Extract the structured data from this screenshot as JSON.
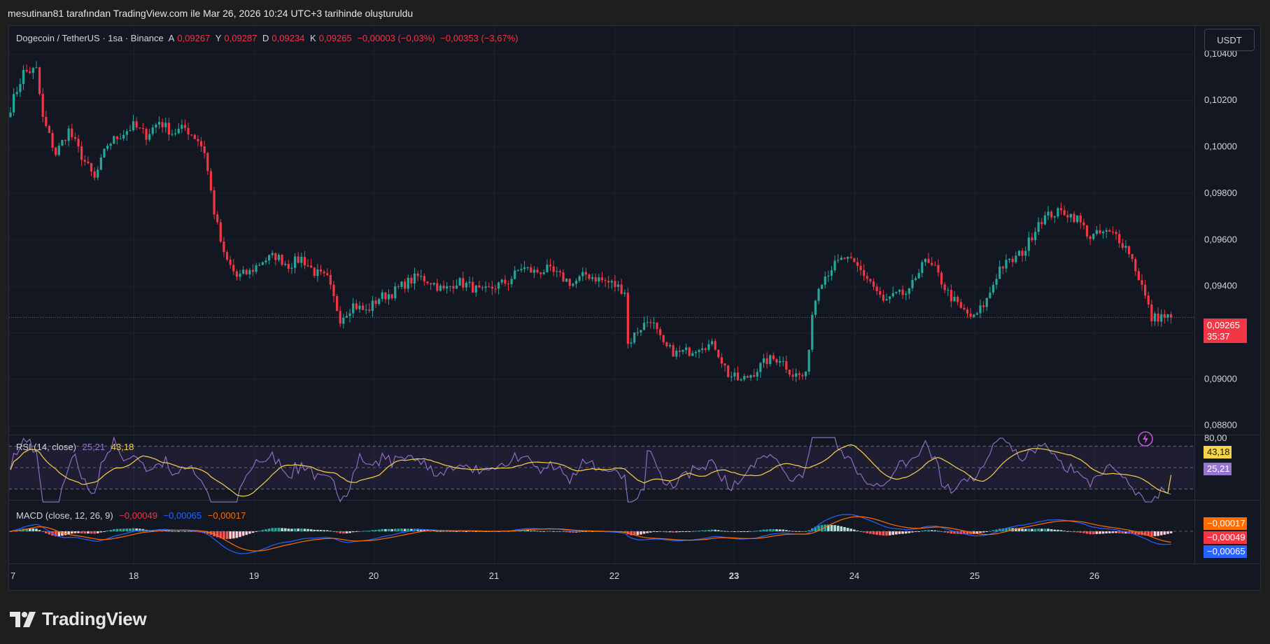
{
  "caption": "mesutinan81 tarafından TradingView.com ile Mar 26, 2026 10:24 UTC+3 tarihinde oluşturuldu",
  "legend": {
    "symbol": "Dogecoin / TetherUS · 1sa · Binance",
    "open_label": "A",
    "open": "0,09267",
    "high_label": "Y",
    "high": "0,09287",
    "low_label": "D",
    "low": "0,09234",
    "close_label": "K",
    "close": "0,09265",
    "change": "−0,00003 (−0,03%)",
    "change2": "−0,00353 (−3,67%)"
  },
  "currency_button": "USDT",
  "price_axis": [
    "0,10400",
    "0,10200",
    "0,10000",
    "0,09800",
    "0,09600",
    "0,09400",
    "0,09000",
    "0,08800"
  ],
  "current_price": {
    "value": "0,09265",
    "countdown": "35:37"
  },
  "rsi": {
    "label": "RSI (14, close)",
    "value1": "25,21",
    "value2": "43,18",
    "axis_top": "80,00"
  },
  "macd": {
    "label": "MACD (close, 12, 26, 9)",
    "v1": "−0,00049",
    "v2": "−0,00065",
    "v3": "−0,00017",
    "tags": [
      "−0,00017",
      "−0,00049",
      "−0,00065"
    ]
  },
  "time_axis": [
    "7",
    "18",
    "19",
    "20",
    "21",
    "22",
    "23",
    "24",
    "25",
    "26"
  ],
  "brand": "TradingView",
  "colors": {
    "up": "#26a69a",
    "down": "#f23645",
    "rsi": "#9575cd",
    "rsi_ma": "#f7d34a",
    "macd": "#2962ff",
    "signal": "#ff6d00"
  },
  "chart_data": {
    "type": "candlestick",
    "title": "Dogecoin / TetherUS · 1sa · Binance",
    "x_ticks": [
      "7",
      "18",
      "19",
      "20",
      "21",
      "22",
      "23",
      "24",
      "25",
      "26"
    ],
    "ylim": [
      0.0876,
      0.1052
    ],
    "close_path": [
      [
        0,
        0.1017
      ],
      [
        4,
        0.1032
      ],
      [
        8,
        0.1033
      ],
      [
        10,
        0.1012
      ],
      [
        14,
        0.0997
      ],
      [
        18,
        0.1007
      ],
      [
        22,
        0.0996
      ],
      [
        26,
        0.0986
      ],
      [
        30,
        0.1001
      ],
      [
        34,
        0.1005
      ],
      [
        38,
        0.1009
      ],
      [
        42,
        0.1005
      ],
      [
        46,
        0.1011
      ],
      [
        50,
        0.1006
      ],
      [
        54,
        0.1008
      ],
      [
        58,
        0.1003
      ],
      [
        60,
        0.0998
      ],
      [
        63,
        0.0972
      ],
      [
        66,
        0.0953
      ],
      [
        70,
        0.0944
      ],
      [
        74,
        0.0946
      ],
      [
        78,
        0.0951
      ],
      [
        82,
        0.0953
      ],
      [
        86,
        0.0949
      ],
      [
        90,
        0.0952
      ],
      [
        94,
        0.0946
      ],
      [
        98,
        0.0943
      ],
      [
        102,
        0.0926
      ],
      [
        106,
        0.0932
      ],
      [
        110,
        0.0929
      ],
      [
        114,
        0.0935
      ],
      [
        118,
        0.0937
      ],
      [
        122,
        0.0941
      ],
      [
        126,
        0.0944
      ],
      [
        130,
        0.0942
      ],
      [
        134,
        0.0938
      ],
      [
        138,
        0.0942
      ],
      [
        142,
        0.094
      ],
      [
        146,
        0.0937
      ],
      [
        150,
        0.094
      ],
      [
        154,
        0.0942
      ],
      [
        158,
        0.0948
      ],
      [
        162,
        0.0946
      ],
      [
        166,
        0.0947
      ],
      [
        170,
        0.0944
      ],
      [
        174,
        0.0941
      ],
      [
        178,
        0.0945
      ],
      [
        182,
        0.0943
      ],
      [
        186,
        0.0941
      ],
      [
        190,
        0.0938
      ],
      [
        191,
        0.0915
      ],
      [
        194,
        0.0921
      ],
      [
        198,
        0.0926
      ],
      [
        202,
        0.0914
      ],
      [
        206,
        0.0911
      ],
      [
        210,
        0.0912
      ],
      [
        214,
        0.0915
      ],
      [
        218,
        0.0914
      ],
      [
        222,
        0.0902
      ],
      [
        226,
        0.0899
      ],
      [
        230,
        0.0903
      ],
      [
        234,
        0.0908
      ],
      [
        238,
        0.0909
      ],
      [
        242,
        0.0902
      ],
      [
        246,
        0.0901
      ],
      [
        248,
        0.0928
      ],
      [
        250,
        0.0941
      ],
      [
        254,
        0.0948
      ],
      [
        258,
        0.0952
      ],
      [
        262,
        0.0948
      ],
      [
        266,
        0.0942
      ],
      [
        270,
        0.0933
      ],
      [
        274,
        0.0936
      ],
      [
        278,
        0.0937
      ],
      [
        282,
        0.0951
      ],
      [
        286,
        0.0947
      ],
      [
        290,
        0.0937
      ],
      [
        294,
        0.093
      ],
      [
        298,
        0.0926
      ],
      [
        302,
        0.0934
      ],
      [
        306,
        0.0948
      ],
      [
        310,
        0.0951
      ],
      [
        314,
        0.0956
      ],
      [
        318,
        0.0968
      ],
      [
        322,
        0.0971
      ],
      [
        326,
        0.0972
      ],
      [
        330,
        0.0969
      ],
      [
        334,
        0.0961
      ],
      [
        338,
        0.0963
      ],
      [
        342,
        0.0962
      ],
      [
        346,
        0.0955
      ],
      [
        350,
        0.094
      ],
      [
        353,
        0.0926
      ],
      [
        356,
        0.0927
      ],
      [
        358,
        0.09265
      ]
    ],
    "rsi_range": [
      20,
      80
    ],
    "rsi_bands": [
      70,
      30
    ],
    "rsi_last": 25.21,
    "rsi_ma_last": 43.18,
    "macd_last": -0.00049,
    "signal_last": -0.00065,
    "histogram_last": -0.00017
  }
}
